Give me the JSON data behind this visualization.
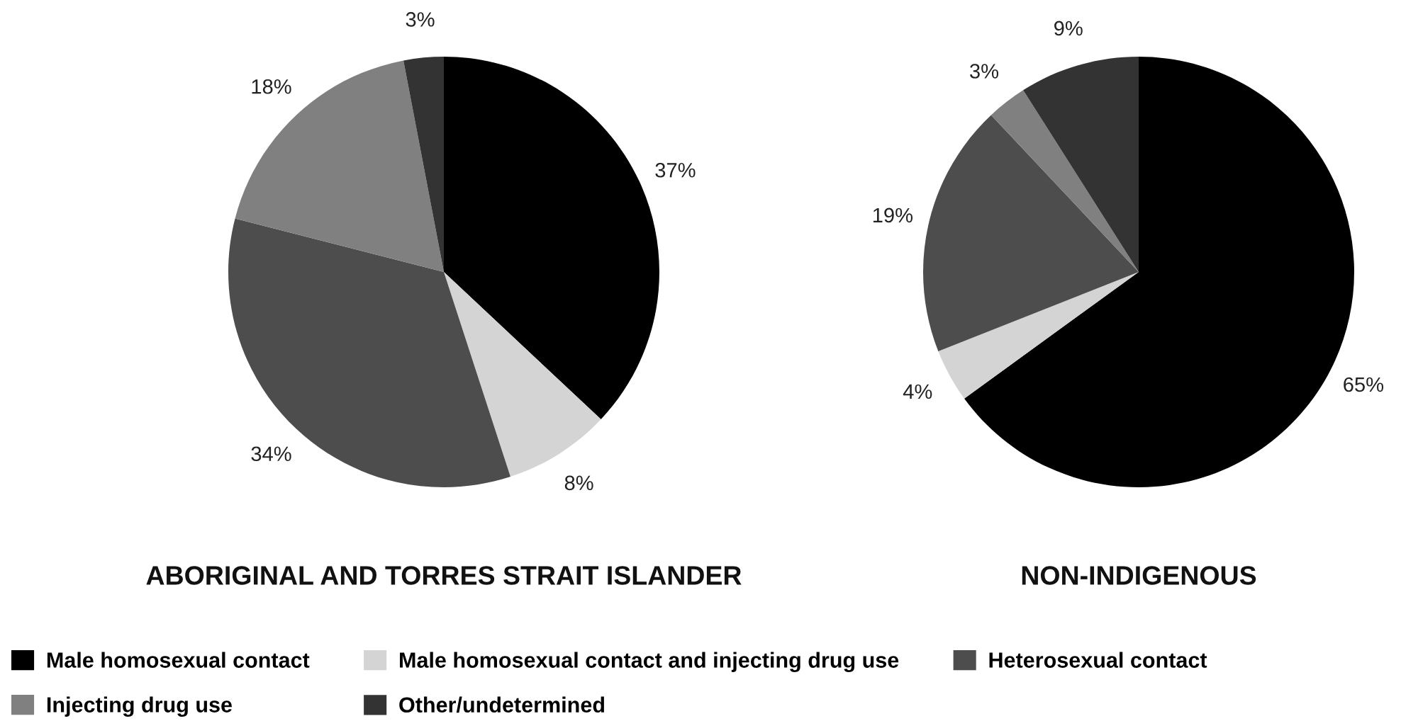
{
  "chart_data": {
    "type": "pie",
    "categories": [
      "Male homosexual contact",
      "Male homosexual contact and injecting drug use",
      "Heterosexual contact",
      "Injecting drug use",
      "Other/undetermined"
    ],
    "colors": [
      "#000000",
      "#d4d4d4",
      "#4d4d4d",
      "#808080",
      "#333333"
    ],
    "legend": "bottom",
    "series": [
      {
        "name": "ABORIGINAL AND TORRES STRAIT ISLANDER",
        "values": [
          37,
          8,
          34,
          18,
          3
        ],
        "value_labels": [
          "37%",
          "8%",
          "34%",
          "18%",
          "3%"
        ]
      },
      {
        "name": "NON-INDIGENOUS",
        "values": [
          65,
          4,
          19,
          3,
          9
        ],
        "value_labels": [
          "65%",
          "4%",
          "19%",
          "3%",
          "9%"
        ]
      }
    ]
  }
}
